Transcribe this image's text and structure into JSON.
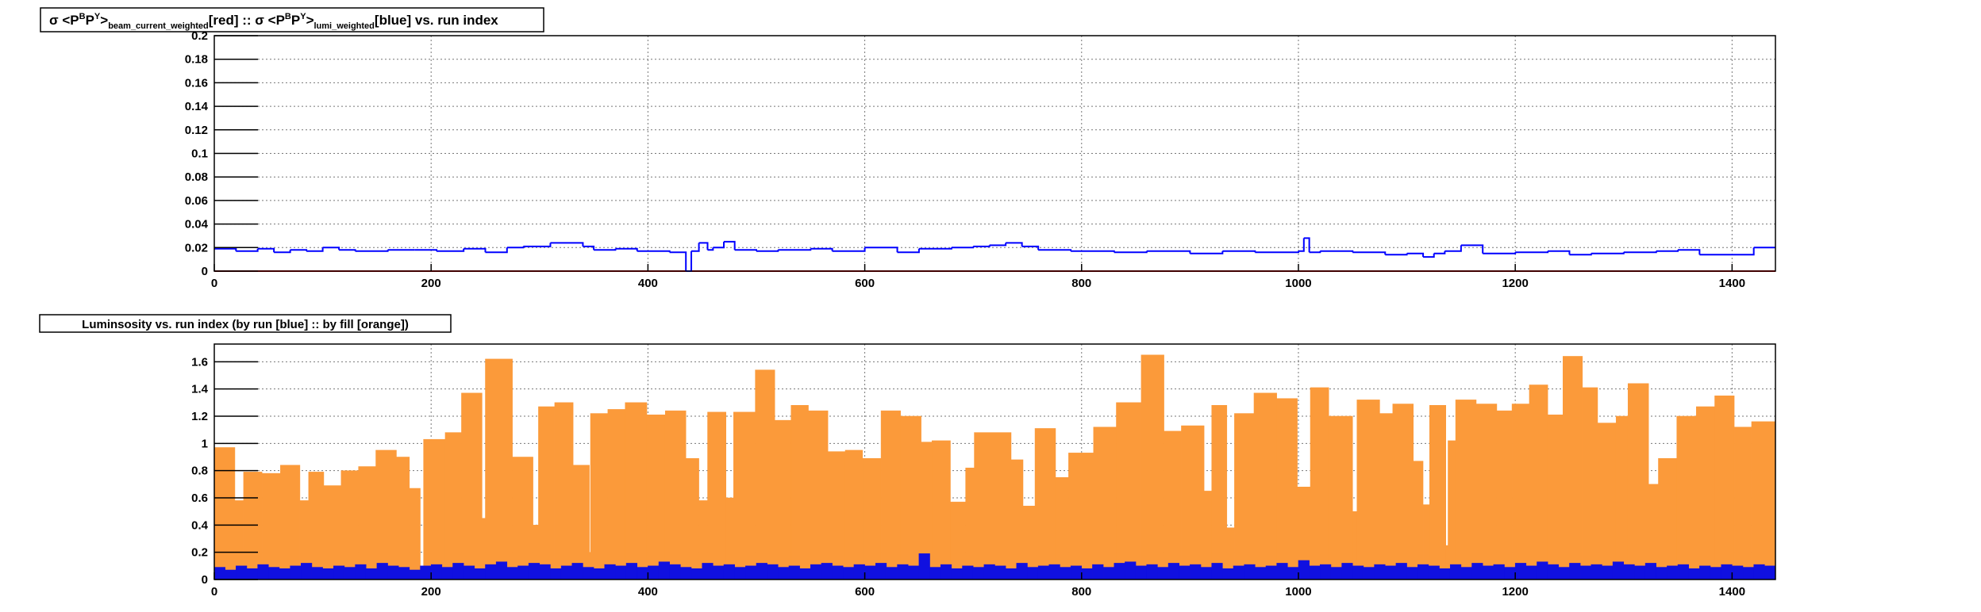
{
  "chart_data": [
    {
      "type": "line",
      "step": true,
      "grid": true,
      "title_parts": [
        "σ <P",
        "B",
        "P",
        "Y",
        ">",
        "beam_current_weighted",
        "[red] :: σ <P",
        "B",
        "P",
        "Y",
        ">",
        "lumi_weighted",
        "[blue] vs. run index"
      ],
      "xlim": [
        0,
        1440
      ],
      "xticks": [
        0,
        200,
        400,
        600,
        800,
        1000,
        1200,
        1400
      ],
      "ylim": [
        0,
        0.2
      ],
      "yticks": [
        0,
        0.02,
        0.04,
        0.06,
        0.08,
        0.1,
        0.12,
        0.14,
        0.16,
        0.18,
        0.2
      ],
      "series": [
        {
          "color": "#ff0000",
          "x": [
            0
          ],
          "values": [
            0
          ]
        },
        {
          "color": "#0000ff",
          "x": [
            0,
            20,
            40,
            55,
            70,
            85,
            100,
            115,
            130,
            160,
            185,
            205,
            230,
            250,
            270,
            285,
            310,
            340,
            350,
            370,
            390,
            420,
            435,
            440,
            447,
            455,
            460,
            470,
            480,
            500,
            520,
            550,
            570,
            600,
            630,
            650,
            680,
            700,
            715,
            730,
            745,
            760,
            790,
            830,
            860,
            900,
            930,
            960,
            1000,
            1005,
            1010,
            1020,
            1050,
            1080,
            1100,
            1115,
            1125,
            1135,
            1150,
            1170,
            1200,
            1230,
            1250,
            1270,
            1300,
            1330,
            1350,
            1370,
            1420
          ],
          "values": [
            0.019,
            0.017,
            0.019,
            0.016,
            0.018,
            0.017,
            0.02,
            0.018,
            0.017,
            0.018,
            0.018,
            0.017,
            0.019,
            0.016,
            0.02,
            0.021,
            0.024,
            0.021,
            0.018,
            0.019,
            0.017,
            0.016,
            0,
            0.017,
            0.024,
            0.018,
            0.02,
            0.025,
            0.018,
            0.017,
            0.018,
            0.019,
            0.017,
            0.02,
            0.016,
            0.019,
            0.02,
            0.021,
            0.022,
            0.024,
            0.021,
            0.018,
            0.017,
            0.016,
            0.017,
            0.015,
            0.017,
            0.016,
            0.017,
            0.028,
            0.016,
            0.017,
            0.016,
            0.014,
            0.015,
            0.012,
            0.015,
            0.017,
            0.022,
            0.015,
            0.016,
            0.017,
            0.014,
            0.015,
            0.016,
            0.017,
            0.018,
            0.014,
            0.02
          ]
        }
      ]
    },
    {
      "type": "histogram",
      "grid": true,
      "title": "Luminsosity vs. run index (by run [blue] :: by fill [orange])",
      "xlim": [
        0,
        1440
      ],
      "xticks": [
        0,
        200,
        400,
        600,
        800,
        1000,
        1200,
        1400
      ],
      "ylim": [
        0,
        1.73
      ],
      "yticks": [
        0,
        0.2,
        0.4,
        0.6,
        0.8,
        1,
        1.2,
        1.4,
        1.6
      ],
      "series": [
        {
          "color": "#fb9a3a",
          "bins": [
            0,
            19,
            27,
            44,
            61,
            79,
            87,
            101,
            117,
            133,
            149,
            168,
            180,
            190,
            193,
            213,
            228,
            247,
            250,
            275,
            294,
            299,
            314,
            331,
            346,
            347,
            363,
            379,
            399,
            416,
            435,
            447,
            455,
            472,
            479,
            499,
            517,
            532,
            548,
            566,
            582,
            598,
            615,
            633,
            652,
            662,
            679,
            693,
            701,
            735,
            746,
            757,
            776,
            788,
            811,
            832,
            855,
            876,
            892,
            913,
            920,
            934,
            941,
            959,
            980,
            999,
            1011,
            1028,
            1050,
            1054,
            1075,
            1087,
            1106,
            1115,
            1121,
            1136,
            1138,
            1145,
            1164,
            1183,
            1197,
            1213,
            1230,
            1244,
            1262,
            1276,
            1293,
            1304,
            1323,
            1332,
            1349,
            1367,
            1384,
            1402,
            1418,
            1440
          ],
          "values": [
            0.97,
            0.58,
            0.79,
            0.78,
            0.84,
            0.58,
            0.79,
            0.69,
            0.8,
            0.83,
            0.95,
            0.9,
            0.67,
            0,
            1.03,
            1.08,
            1.37,
            0.45,
            1.62,
            0.9,
            0.4,
            1.27,
            1.3,
            0.84,
            0.2,
            1.22,
            1.25,
            1.3,
            1.21,
            1.24,
            0.89,
            0.58,
            1.23,
            0.6,
            1.23,
            1.54,
            1.17,
            1.28,
            1.24,
            0.94,
            0.95,
            0.89,
            1.24,
            1.2,
            1.01,
            1.02,
            0.57,
            0.82,
            1.08,
            0.88,
            0.54,
            1.11,
            0.75,
            0.93,
            1.12,
            1.3,
            1.65,
            1.09,
            1.13,
            0.65,
            1.28,
            0.38,
            1.22,
            1.37,
            1.33,
            0.68,
            1.41,
            1.2,
            0.5,
            1.32,
            1.22,
            1.29,
            0.87,
            0.55,
            1.28,
            0.25,
            1.02,
            1.32,
            1.29,
            1.24,
            1.29,
            1.43,
            1.21,
            1.64,
            1.41,
            1.15,
            1.2,
            1.44,
            0.7,
            0.89,
            1.2,
            1.27,
            1.35,
            1.12,
            1.16
          ]
        },
        {
          "color": "#1010e0",
          "bins": [
            0,
            10,
            20,
            30,
            40,
            50,
            60,
            70,
            80,
            90,
            100,
            110,
            120,
            130,
            140,
            150,
            160,
            170,
            180,
            190,
            200,
            210,
            220,
            230,
            240,
            250,
            260,
            270,
            280,
            290,
            300,
            310,
            320,
            330,
            340,
            350,
            360,
            370,
            380,
            390,
            400,
            410,
            420,
            430,
            440,
            450,
            460,
            470,
            480,
            490,
            500,
            510,
            520,
            530,
            540,
            550,
            560,
            570,
            580,
            590,
            600,
            610,
            620,
            630,
            640,
            650,
            660,
            670,
            680,
            690,
            700,
            710,
            720,
            730,
            740,
            750,
            760,
            770,
            780,
            790,
            800,
            810,
            820,
            830,
            840,
            850,
            860,
            870,
            880,
            890,
            900,
            910,
            920,
            930,
            940,
            950,
            960,
            970,
            980,
            990,
            1000,
            1010,
            1020,
            1030,
            1040,
            1050,
            1060,
            1070,
            1080,
            1090,
            1100,
            1110,
            1120,
            1130,
            1140,
            1150,
            1160,
            1170,
            1180,
            1190,
            1200,
            1210,
            1220,
            1230,
            1240,
            1250,
            1260,
            1270,
            1280,
            1290,
            1300,
            1310,
            1320,
            1330,
            1340,
            1350,
            1360,
            1370,
            1380,
            1390,
            1400,
            1410,
            1420,
            1430,
            1440
          ],
          "values": [
            0.09,
            0.07,
            0.1,
            0.08,
            0.11,
            0.09,
            0.08,
            0.1,
            0.12,
            0.09,
            0.08,
            0.1,
            0.09,
            0.11,
            0.08,
            0.12,
            0.1,
            0.09,
            0.07,
            0.1,
            0.11,
            0.09,
            0.12,
            0.1,
            0.08,
            0.11,
            0.13,
            0.09,
            0.1,
            0.12,
            0.11,
            0.08,
            0.1,
            0.12,
            0.09,
            0.08,
            0.11,
            0.1,
            0.12,
            0.09,
            0.1,
            0.13,
            0.11,
            0.09,
            0.08,
            0.12,
            0.1,
            0.11,
            0.09,
            0.1,
            0.12,
            0.11,
            0.09,
            0.1,
            0.08,
            0.11,
            0.12,
            0.1,
            0.09,
            0.11,
            0.1,
            0.12,
            0.09,
            0.11,
            0.1,
            0.19,
            0.09,
            0.11,
            0.08,
            0.1,
            0.09,
            0.11,
            0.1,
            0.08,
            0.12,
            0.09,
            0.1,
            0.11,
            0.09,
            0.1,
            0.08,
            0.11,
            0.09,
            0.12,
            0.13,
            0.1,
            0.11,
            0.09,
            0.12,
            0.1,
            0.11,
            0.09,
            0.12,
            0.08,
            0.1,
            0.11,
            0.09,
            0.1,
            0.12,
            0.09,
            0.14,
            0.1,
            0.11,
            0.09,
            0.12,
            0.1,
            0.09,
            0.11,
            0.1,
            0.12,
            0.09,
            0.11,
            0.1,
            0.08,
            0.11,
            0.09,
            0.12,
            0.1,
            0.11,
            0.09,
            0.12,
            0.1,
            0.13,
            0.11,
            0.09,
            0.12,
            0.1,
            0.11,
            0.1,
            0.13,
            0.11,
            0.1,
            0.12,
            0.09,
            0.1,
            0.11,
            0.08,
            0.1,
            0.09,
            0.11,
            0.1,
            0.09,
            0.11,
            0.1
          ]
        }
      ]
    }
  ]
}
